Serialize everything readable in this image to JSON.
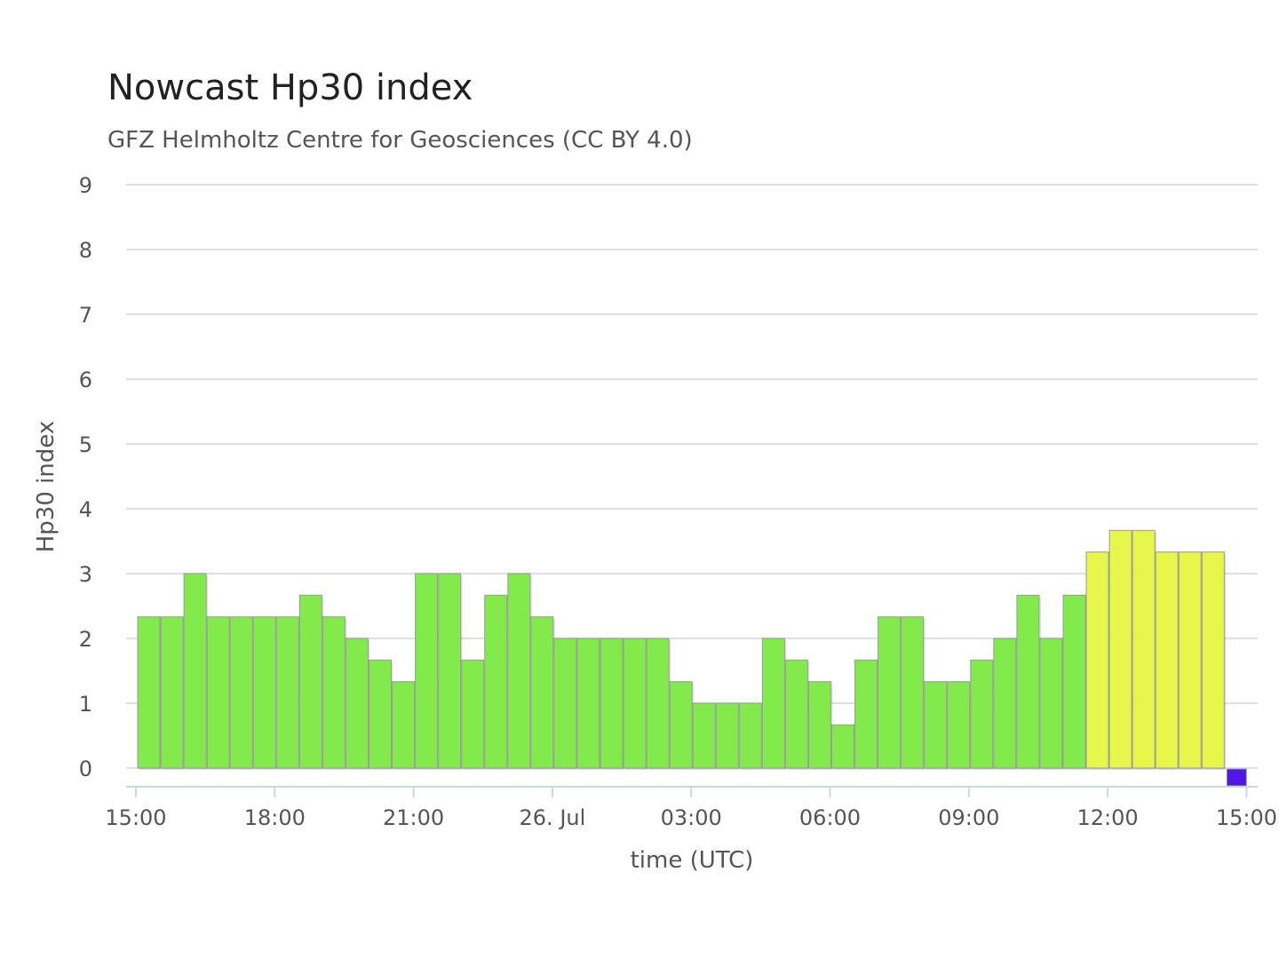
{
  "colors": {
    "green": "#82eb4b",
    "yellow": "#e6f64b",
    "purple": "#5018e6",
    "grid": "#e0e0e0",
    "axis": "#ccd6eb"
  },
  "chart_data": {
    "type": "bar",
    "title": "Nowcast Hp30 index",
    "subtitle": "GFZ Helmholtz Centre for Geosciences (CC BY 4.0)",
    "xlabel": "time (UTC)",
    "ylabel": "Hp30 index",
    "ylim": [
      0,
      9
    ],
    "y_ticks": [
      "0",
      "1",
      "2",
      "3",
      "4",
      "5",
      "6",
      "7",
      "8",
      "9"
    ],
    "x_ticks": [
      "15:00",
      "18:00",
      "21:00",
      "26. Jul",
      "03:00",
      "06:00",
      "09:00",
      "12:00",
      "15:00"
    ],
    "grid": true,
    "legend": "none",
    "series": [
      {
        "values": [
          2.333,
          2.333,
          3,
          2.333,
          2.333,
          2.333,
          2.333,
          2.667,
          2.333,
          2,
          1.667,
          1.333,
          3,
          3,
          1.667,
          2.667,
          3,
          2.333,
          2,
          2,
          2,
          2,
          2,
          1.333,
          1,
          1,
          1,
          2,
          1.667,
          1.333,
          0.667,
          1.667,
          2.333,
          2.333,
          1.333,
          1.333,
          1.667,
          2,
          2.667,
          2,
          2.667,
          3.333,
          3.667,
          3.667,
          3.333,
          3.333,
          3.333,
          0
        ],
        "bar_colors": [
          "green",
          "green",
          "green",
          "green",
          "green",
          "green",
          "green",
          "green",
          "green",
          "green",
          "green",
          "green",
          "green",
          "green",
          "green",
          "green",
          "green",
          "green",
          "green",
          "green",
          "green",
          "green",
          "green",
          "green",
          "green",
          "green",
          "green",
          "green",
          "green",
          "green",
          "green",
          "green",
          "green",
          "green",
          "green",
          "green",
          "green",
          "green",
          "green",
          "green",
          "green",
          "yellow",
          "yellow",
          "yellow",
          "yellow",
          "yellow",
          "yellow",
          "purple"
        ]
      }
    ]
  }
}
